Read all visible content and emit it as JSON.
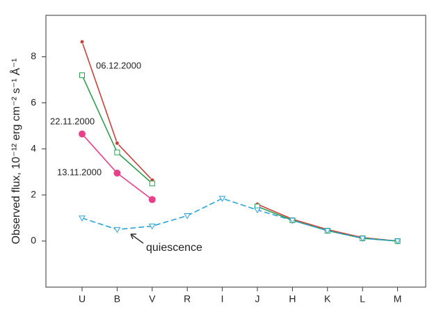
{
  "chart_data": {
    "type": "line",
    "y_label": "Observed flux, 10⁻¹² erg cm⁻² s⁻¹ Å⁻¹",
    "categories": [
      "U",
      "B",
      "V",
      "R",
      "I",
      "J",
      "H",
      "K",
      "L",
      "M"
    ],
    "ylim": [
      -2,
      9.8
    ],
    "yticks": [
      0,
      2,
      4,
      6,
      8
    ],
    "series": [
      {
        "name": "06.12.2000",
        "color": "#c8413a",
        "marker": "dot",
        "values": [
          8.65,
          4.25,
          2.65,
          null,
          null,
          1.6,
          0.95,
          0.5,
          0.15,
          0.0
        ]
      },
      {
        "name": "22.11.2000",
        "color": "#2e9e4f",
        "marker": "square",
        "values": [
          7.2,
          3.85,
          2.5,
          null,
          null,
          1.5,
          0.9,
          0.45,
          0.12,
          0.0
        ]
      },
      {
        "name": "13.11.2000",
        "color": "#e8418a",
        "marker": "circle",
        "values": [
          4.65,
          2.95,
          1.8,
          null,
          null,
          null,
          null,
          null,
          null,
          null
        ]
      },
      {
        "name": "quiescence",
        "color": "#29a3d9",
        "marker": "triangle",
        "dashed": true,
        "values": [
          1.0,
          0.5,
          0.65,
          1.1,
          1.85,
          1.35,
          0.9,
          0.45,
          0.12,
          0.0
        ]
      }
    ]
  }
}
